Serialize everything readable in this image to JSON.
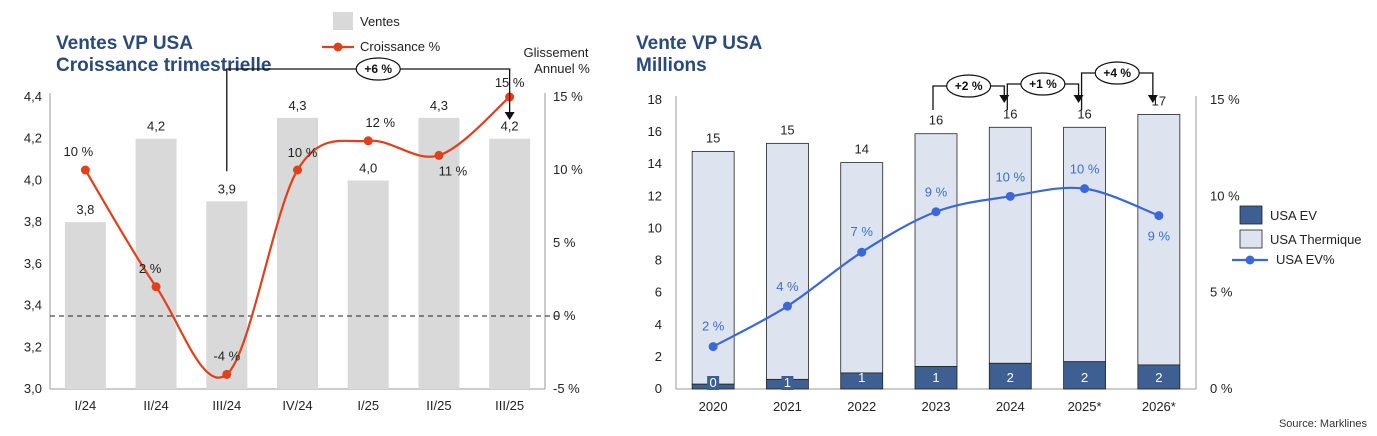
{
  "chart_data": [
    {
      "type": "bar+line",
      "title_line1": "Ventes VP USA",
      "title_line2": "Croissance trimestrielle",
      "categories": [
        "I/24",
        "II/24",
        "III/24",
        "IV/24",
        "I/25",
        "II/25",
        "III/25"
      ],
      "series": [
        {
          "name": "Ventes",
          "type": "bar",
          "values": [
            3.8,
            4.2,
            3.9,
            4.3,
            4.0,
            4.3,
            4.2
          ],
          "labels": [
            "3,8",
            "4,2",
            "3,9",
            "4,3",
            "4,0",
            "4,3",
            "4,2"
          ],
          "color": "#d9d9d9"
        },
        {
          "name": "Croissance %",
          "type": "line",
          "values": [
            10,
            2,
            -4,
            10,
            12,
            11,
            15
          ],
          "labels": [
            "10 %",
            "2 %",
            "-4 %",
            "10 %",
            "12 %",
            "11 %",
            "15 %"
          ],
          "color": "#e0401a"
        }
      ],
      "y_left": {
        "min": 3.0,
        "max": 4.4,
        "ticks": [
          3.0,
          3.2,
          3.4,
          3.6,
          3.8,
          4.0,
          4.2,
          4.4
        ],
        "tick_labels": [
          "3,0",
          "3,2",
          "3,4",
          "3,6",
          "3,8",
          "4,0",
          "4,2",
          "4,4"
        ]
      },
      "y_right": {
        "min": -5,
        "max": 15,
        "ticks": [
          -5,
          0,
          5,
          10,
          15
        ],
        "tick_labels": [
          "-5 %",
          "0 %",
          "5 %",
          "10 %",
          "15 %"
        ]
      },
      "zero_line": 0,
      "annotation": {
        "from": "III/24",
        "to": "III/25",
        "label": "+6 %",
        "note": "Glissement Annuel %"
      }
    },
    {
      "type": "stacked-bar+line",
      "title_line1": "Vente VP USA",
      "title_line2": "Millions",
      "categories": [
        "2020",
        "2021",
        "2022",
        "2023",
        "2024",
        "2025*",
        "2026*"
      ],
      "totals": [
        14.8,
        15.3,
        14.1,
        15.9,
        16.3,
        16.3,
        17.1
      ],
      "total_labels": [
        "15",
        "15",
        "14",
        "16",
        "16",
        "16",
        "17"
      ],
      "series": [
        {
          "name": "USA EV",
          "type": "bar",
          "values": [
            0.3,
            0.6,
            1.0,
            1.4,
            1.6,
            1.7,
            1.5
          ],
          "labels": [
            "0",
            "1",
            "1",
            "1",
            "2",
            "2",
            "2"
          ],
          "color": "#3e5f92"
        },
        {
          "name": "USA Thermique",
          "type": "bar",
          "values": [
            14.5,
            14.7,
            13.1,
            14.5,
            14.7,
            14.6,
            15.6
          ],
          "color": "#dde3ef"
        },
        {
          "name": "USA EV%",
          "type": "line",
          "values": [
            2.2,
            4.3,
            7.1,
            9.2,
            10.0,
            10.4,
            9.0
          ],
          "labels": [
            "2 %",
            "4 %",
            "7 %",
            "9 %",
            "10 %",
            "10 %",
            "9 %"
          ],
          "color": "#3a68d8"
        }
      ],
      "y_left": {
        "min": 0,
        "max": 18,
        "ticks": [
          0,
          2,
          4,
          6,
          8,
          10,
          12,
          14,
          16,
          18
        ],
        "tick_labels": [
          "0",
          "2",
          "4",
          "6",
          "8",
          "10",
          "12",
          "14",
          "16",
          "18"
        ]
      },
      "y_right": {
        "min": 0,
        "max": 15,
        "ticks": [
          0,
          5,
          10,
          15
        ],
        "tick_labels": [
          "0 %",
          "5 %",
          "10 %",
          "15 %"
        ]
      },
      "annotations": [
        {
          "from": "2023",
          "to": "2024",
          "label": "+2 %"
        },
        {
          "from": "2024",
          "to": "2025*",
          "label": "+1 %"
        },
        {
          "from": "2025*",
          "to": "2026*",
          "label": "+4 %"
        }
      ]
    }
  ],
  "source": "Source: Marklines"
}
